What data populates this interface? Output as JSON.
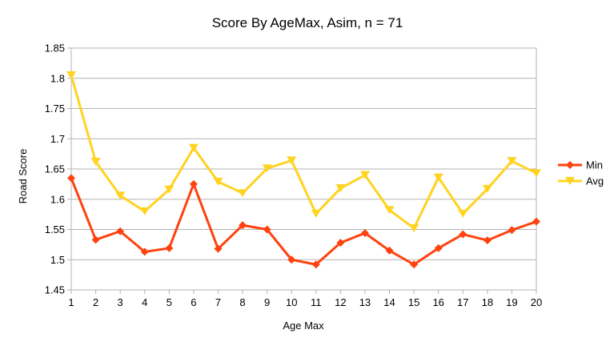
{
  "chart_data": {
    "type": "line",
    "title": "Score By AgeMax, Asim, n = 71",
    "xlabel": "Age Max",
    "ylabel": "Road Score",
    "x": [
      1,
      2,
      3,
      4,
      5,
      6,
      7,
      8,
      9,
      10,
      11,
      12,
      13,
      14,
      15,
      16,
      17,
      18,
      19,
      20
    ],
    "x_tick_labels": [
      "1",
      "2",
      "3",
      "4",
      "5",
      "6",
      "7",
      "8",
      "9",
      "10",
      "11",
      "12",
      "13",
      "14",
      "15",
      "16",
      "17",
      "18",
      "19",
      "20"
    ],
    "ylim": [
      1.45,
      1.85
    ],
    "y_ticks": [
      1.45,
      1.5,
      1.55,
      1.6,
      1.65,
      1.7,
      1.75,
      1.8,
      1.85
    ],
    "y_tick_labels": [
      "1.45",
      "1.5",
      "1.55",
      "1.6",
      "1.65",
      "1.7",
      "1.75",
      "1.8",
      "1.85"
    ],
    "grid": "horizontal",
    "legend_position": "right",
    "series": [
      {
        "name": "Min",
        "color": "#ff420e",
        "marker": "diamond",
        "values": [
          1.635,
          1.533,
          1.547,
          1.513,
          1.519,
          1.625,
          1.518,
          1.557,
          1.55,
          1.5,
          1.492,
          1.528,
          1.544,
          1.515,
          1.492,
          1.519,
          1.542,
          1.532,
          1.549,
          1.563
        ]
      },
      {
        "name": "Avg",
        "color": "#ffd320",
        "marker": "triangle-down",
        "values": [
          1.805,
          1.662,
          1.606,
          1.58,
          1.616,
          1.685,
          1.629,
          1.61,
          1.651,
          1.664,
          1.576,
          1.618,
          1.64,
          1.582,
          1.552,
          1.636,
          1.576,
          1.617,
          1.663,
          1.643
        ]
      }
    ]
  }
}
